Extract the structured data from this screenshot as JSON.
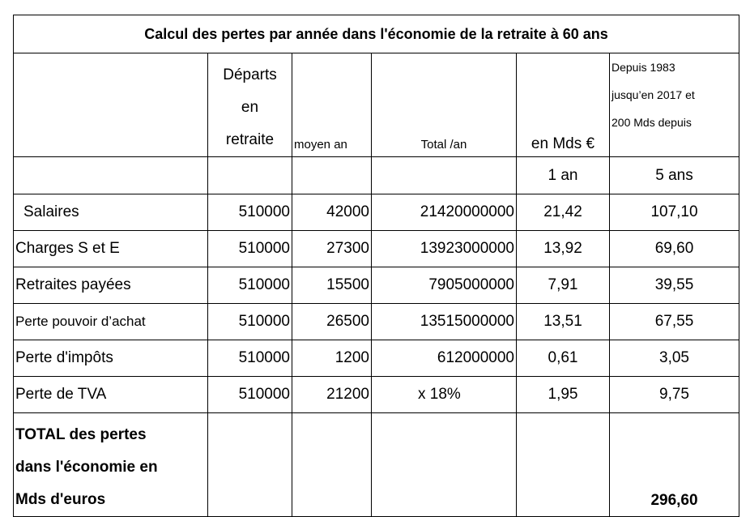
{
  "title": "Calcul des pertes par année dans l'économie de la retraite à 60 ans",
  "header": {
    "departs": [
      "Départs",
      "en",
      "retraite"
    ],
    "moyen": "moyen an",
    "total": "Total /an",
    "mds": "en Mds €",
    "note": [
      "Depuis 1983",
      "jusqu’en 2017 et",
      "200 Mds depuis"
    ]
  },
  "subheader": {
    "mds": "1 an",
    "ans": "5 ans"
  },
  "rows": [
    {
      "label": "Salaires",
      "departs": "510000",
      "moyen": "42000",
      "total": "21420000000",
      "mds": "21,42",
      "ans": "107,10"
    },
    {
      "label": "Charges S et E",
      "departs": "510000",
      "moyen": "27300",
      "total": "13923000000",
      "mds": "13,92",
      "ans": "69,60"
    },
    {
      "label": "Retraites payées",
      "departs": "510000",
      "moyen": "15500",
      "total": "7905000000",
      "mds": "7,91",
      "ans": "39,55"
    },
    {
      "label": "Perte pouvoir  d’achat",
      "departs": "510000",
      "moyen": "26500",
      "total": "13515000000",
      "mds": "13,51",
      "ans": "67,55"
    },
    {
      "label": "Perte d'impôts",
      "departs": "510000",
      "moyen": "1200",
      "total": "612000000",
      "mds": "0,61",
      "ans": "3,05"
    },
    {
      "label": "Perte de TVA",
      "departs": "510000",
      "moyen": "21200",
      "total": "x 18%",
      "mds": "1,95",
      "ans": "9,75"
    }
  ],
  "total": {
    "label": [
      "TOTAL des pertes",
      "dans l'économie en",
      "Mds d'euros"
    ],
    "ans": "296,60"
  }
}
